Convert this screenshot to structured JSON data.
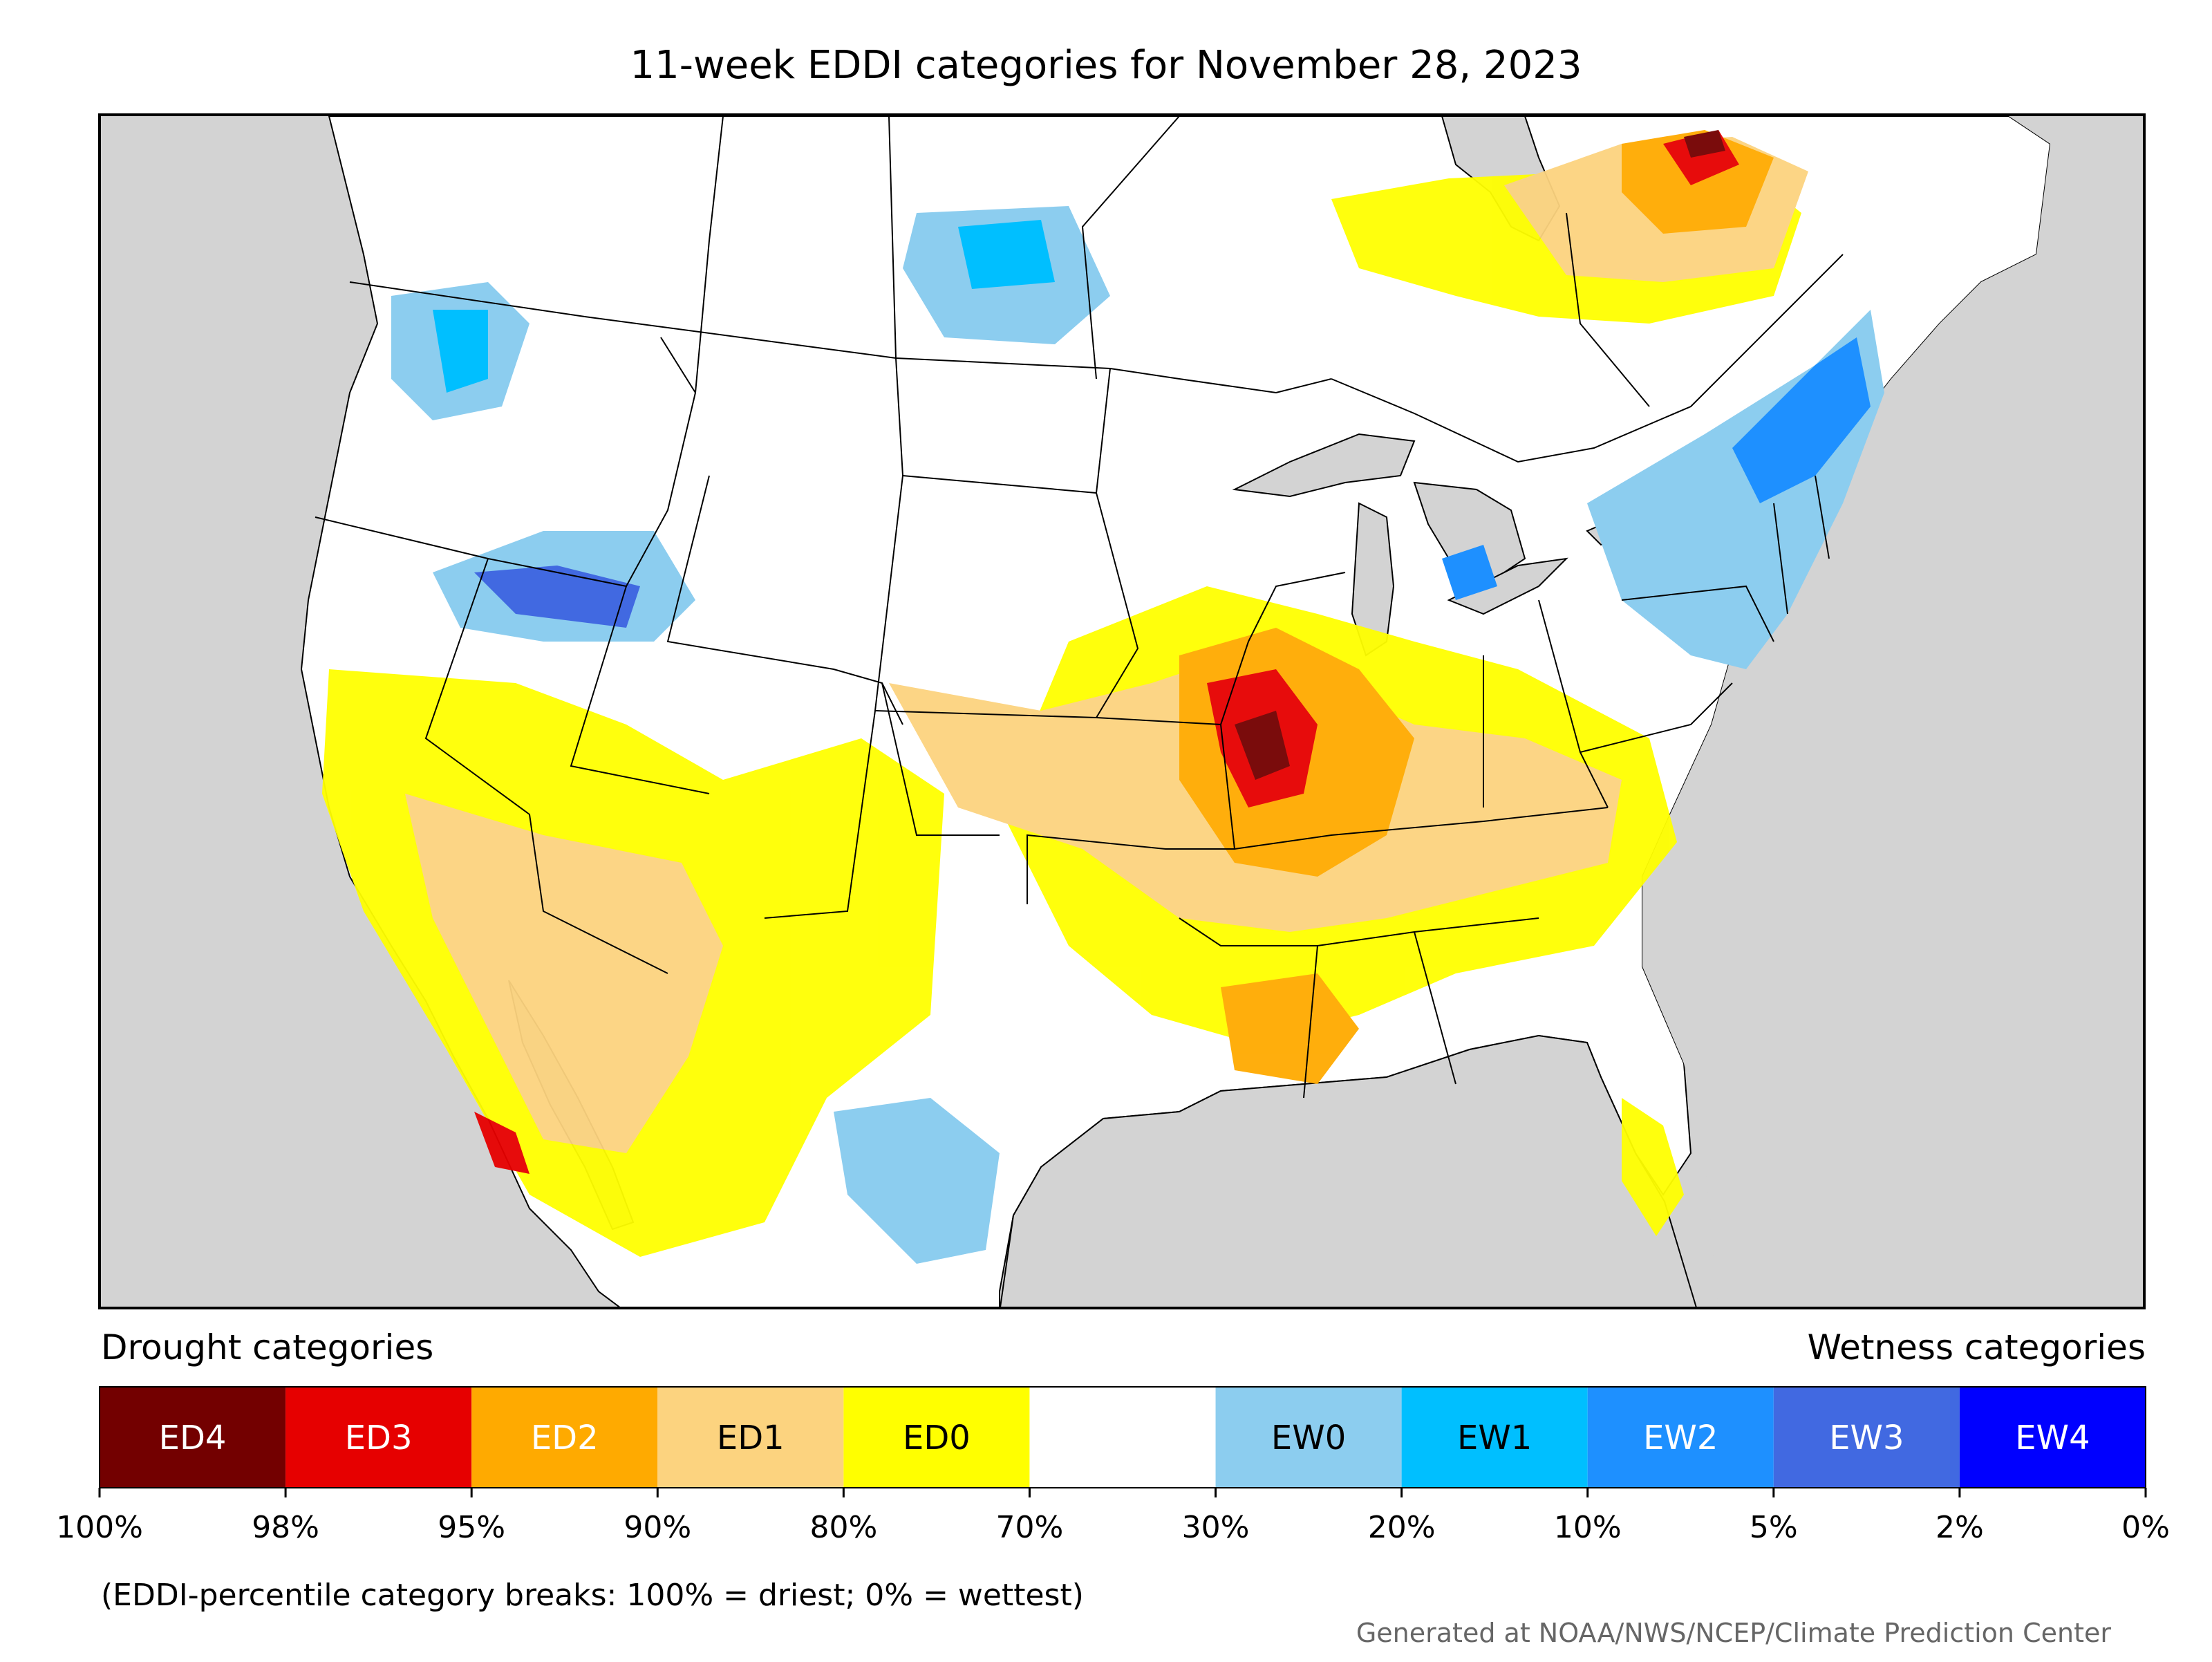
{
  "title": "11-week EDDI categories for November 28, 2023",
  "legend": {
    "drought_heading": "Drought categories",
    "wetness_heading": "Wetness categories",
    "categories": [
      {
        "label": "ED4",
        "color": "#730000",
        "text_color": "#ffffff"
      },
      {
        "label": "ED3",
        "color": "#e60000",
        "text_color": "#ffffff"
      },
      {
        "label": "ED2",
        "color": "#ffaa00",
        "text_color": "#ffffff"
      },
      {
        "label": "ED1",
        "color": "#fcd37f",
        "text_color": "#000000"
      },
      {
        "label": "ED0",
        "color": "#ffff00",
        "text_color": "#000000"
      },
      {
        "label": "",
        "color": "#ffffff",
        "text_color": "#000000"
      },
      {
        "label": "EW0",
        "color": "#8ccdef",
        "text_color": "#000000"
      },
      {
        "label": "EW1",
        "color": "#00bfff",
        "text_color": "#000000"
      },
      {
        "label": "EW2",
        "color": "#1e90ff",
        "text_color": "#ffffff"
      },
      {
        "label": "EW3",
        "color": "#4169e1",
        "text_color": "#ffffff"
      },
      {
        "label": "EW4",
        "color": "#0000ff",
        "text_color": "#ffffff"
      }
    ],
    "breaks": [
      "100%",
      "98%",
      "95%",
      "90%",
      "80%",
      "70%",
      "30%",
      "20%",
      "10%",
      "5%",
      "2%",
      "0%"
    ]
  },
  "note": "(EDDI-percentile category breaks: 100% = driest; 0% = wettest)",
  "credit": "Generated at NOAA/NWS/NCEP/Climate Prediction Center",
  "colors": {
    "ocean": "#d3d3d3",
    "land": "#ffffff",
    "border": "#000000"
  }
}
